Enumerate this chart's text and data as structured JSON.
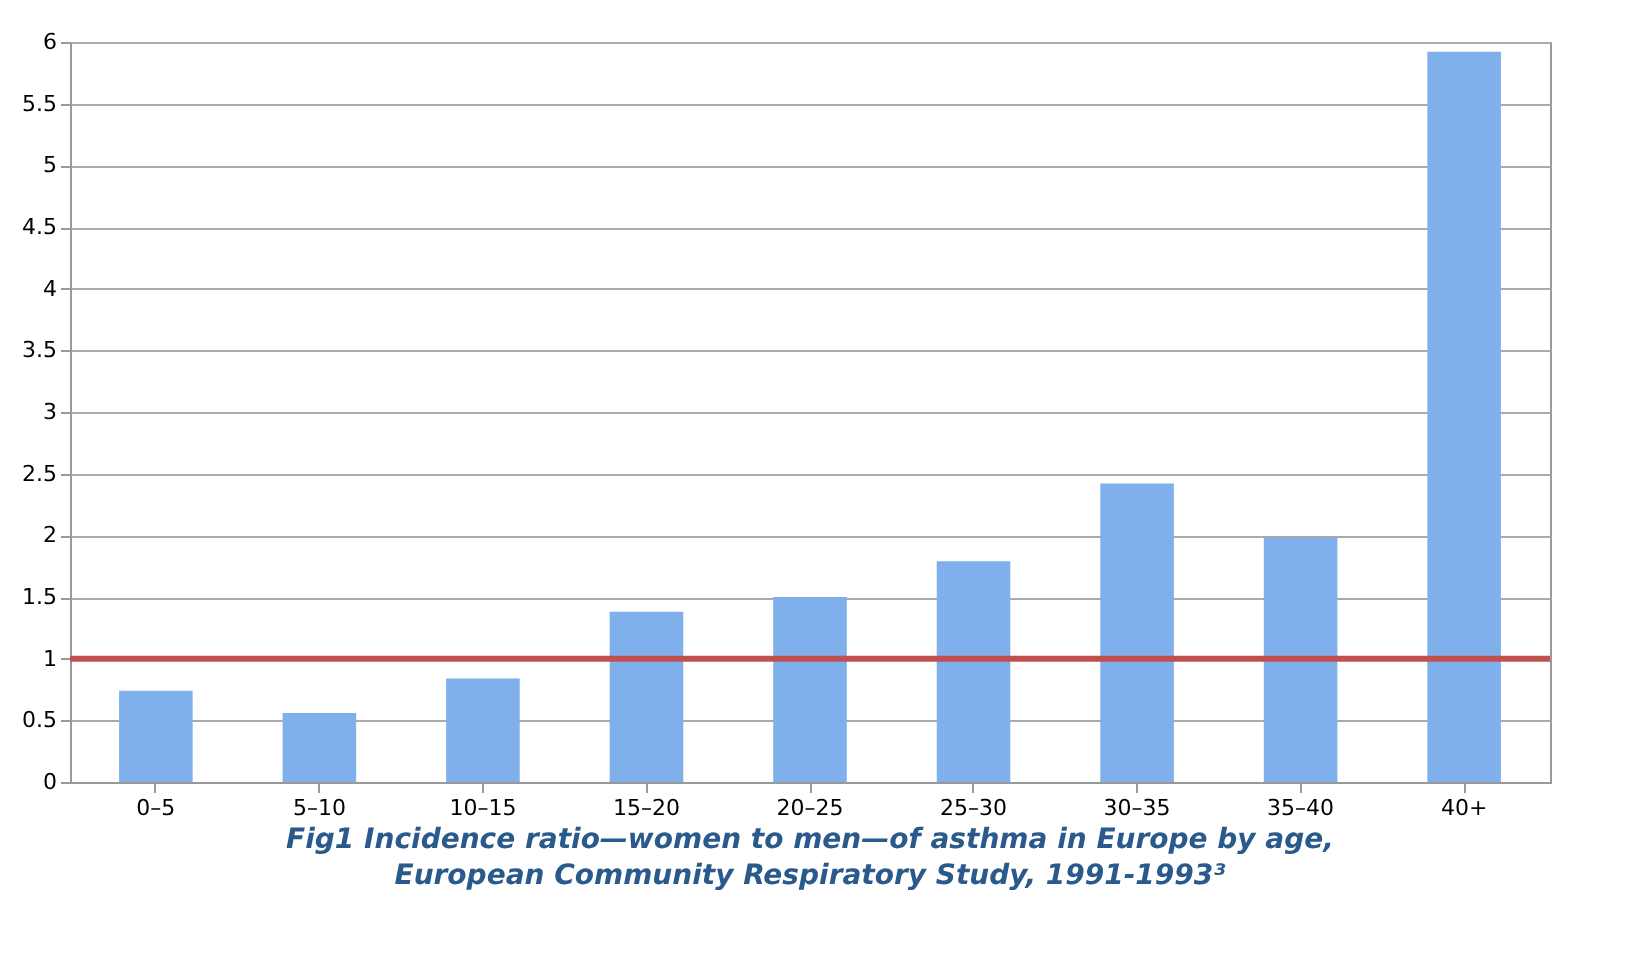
{
  "chart_data": {
    "type": "bar",
    "title": "Fig1 Incidence ratio—women to men—of asthma in Europe by age, European Community Respiratory Study, 1991-1993³",
    "categories": [
      "0–5",
      "5–10",
      "10–15",
      "15–20",
      "20–25",
      "25–30",
      "30–35",
      "35–40",
      "40+"
    ],
    "values": [
      0.74,
      0.56,
      0.84,
      1.38,
      1.5,
      1.79,
      2.42,
      1.98,
      5.92
    ],
    "color": "#7fb0ec",
    "ylim": [
      0,
      6
    ],
    "yticks": [
      0,
      0.5,
      1,
      1.5,
      2,
      2.5,
      3,
      3.5,
      4,
      4.5,
      5,
      5.5,
      6
    ],
    "grid": "y",
    "ref_lines": [
      {
        "axis": "y",
        "value": 1,
        "color": "#c0504d"
      }
    ]
  }
}
